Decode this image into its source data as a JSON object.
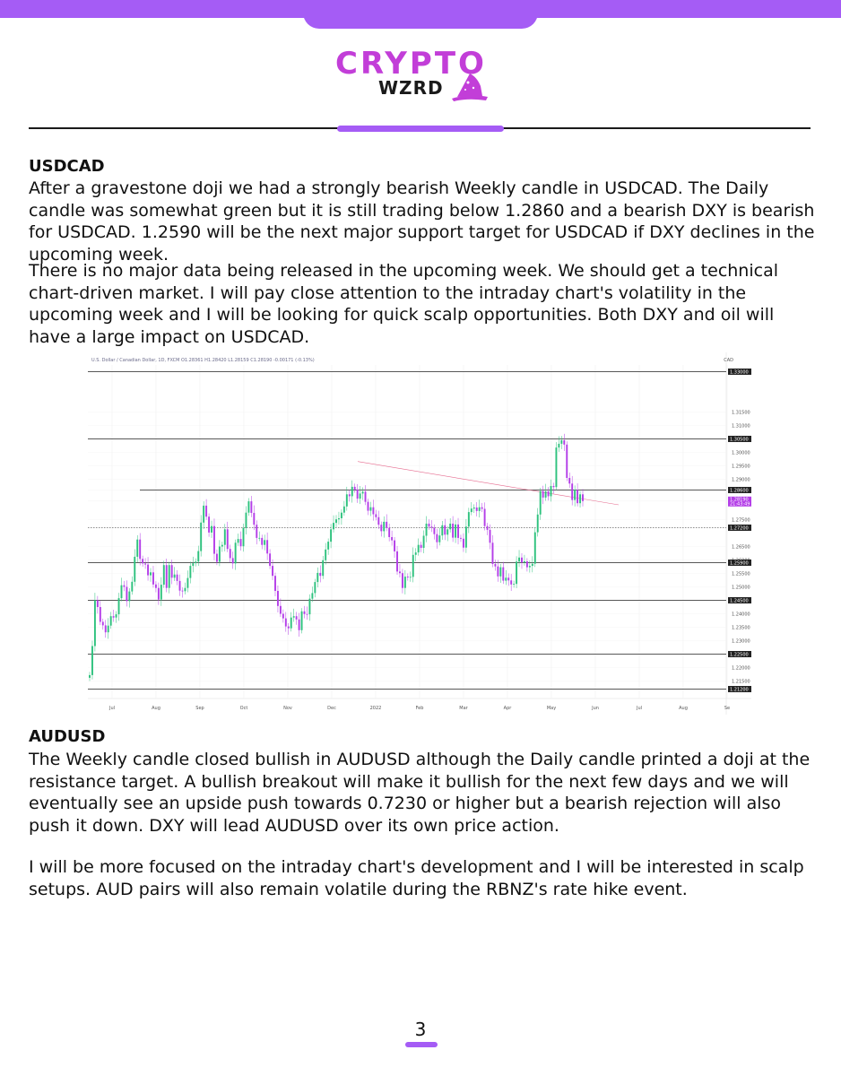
{
  "brand": {
    "name": "CRYPTO",
    "sub": "WZRD"
  },
  "sections": [
    {
      "title": "USDCAD",
      "paragraphs": [
        "After a gravestone doji we had a strongly bearish Weekly candle in USDCAD. The Daily candle was somewhat green but it is still trading below 1.2860 and a bearish DXY is bearish for USDCAD. 1.2590 will be the next major support target for USDCAD if DXY declines in the upcoming week.",
        "There is no major data being released in the upcoming week. We should get a technical chart-driven market. I will pay close attention to the intraday chart's volatility in the upcoming week and I will be looking for quick scalp opportunities. Both DXY and oil will have a large impact on USDCAD."
      ]
    },
    {
      "title": "AUDUSD",
      "paragraphs": [
        "The Weekly candle closed bullish in AUDUSD although the Daily candle printed a doji at the resistance target. A bullish breakout will make it bullish for the next few days and we will eventually see an upside push towards 0.7230 or higher but a bearish rejection will also push it down. DXY will lead AUDUSD over its own price action.",
        "I will be more focused on the intraday chart's development and I will be interested in scalp setups. AUD pairs will also remain volatile during the RBNZ's rate hike event."
      ]
    }
  ],
  "chart": {
    "header": "U.S. Dollar / Canadian Dollar, 1D, FXCM  O1.28361  H1.28420  L1.28159  C1.28190  -0.00171 (-0.13%)",
    "currency": "CAD",
    "price_badge": "1.28190",
    "price_badge_time": "21:43:49"
  },
  "chart_data": {
    "type": "candlestick",
    "title": "U.S. Dollar / Canadian Dollar, 1D, FXCM",
    "ylim": [
      1.2085,
      1.3325
    ],
    "y_ticks": [
      "1.33000",
      "1.31500",
      "1.31000",
      "1.30500",
      "1.30000",
      "1.29500",
      "1.29000",
      "1.28600",
      "1.28190",
      "1.27500",
      "1.27200",
      "1.26500",
      "1.26000",
      "1.25900",
      "1.25500",
      "1.25000",
      "1.24500",
      "1.24000",
      "1.23500",
      "1.23000",
      "1.22500",
      "1.22000",
      "1.21500",
      "1.21200"
    ],
    "x_ticks": [
      "Jul",
      "Aug",
      "Sep",
      "Oct",
      "Nov",
      "Dec",
      "2022",
      "Feb",
      "Mar",
      "Apr",
      "May",
      "Jun",
      "Jul",
      "Aug",
      "Se"
    ],
    "levels": [
      {
        "label": "1.33000",
        "value": 1.33,
        "style": "solid"
      },
      {
        "label": "1.30500",
        "value": 1.305,
        "style": "solid"
      },
      {
        "label": "1.28600",
        "value": 1.286,
        "style": "solid"
      },
      {
        "label": "1.27200",
        "value": 1.272,
        "style": "dotted"
      },
      {
        "label": "1.25900",
        "value": 1.259,
        "style": "solid"
      },
      {
        "label": "1.24500",
        "value": 1.245,
        "style": "solid"
      },
      {
        "label": "1.22500",
        "value": 1.225,
        "style": "solid"
      },
      {
        "label": "1.21200",
        "value": 1.212,
        "style": "solid"
      }
    ],
    "trendline": [
      1.2966,
      1.2805
    ],
    "current_price": 1.2819,
    "colors": {
      "up": "#2ec27e",
      "down": "#b43ee8",
      "trendline": "#e66b8f",
      "level": "#222222"
    },
    "series": [
      {
        "name": "USDCAD",
        "close": [
          1.2172,
          1.228,
          1.245,
          1.2425,
          1.237,
          1.2357,
          1.2331,
          1.2356,
          1.2391,
          1.2386,
          1.2398,
          1.2458,
          1.2506,
          1.25,
          1.2447,
          1.2483,
          1.2519,
          1.2612,
          1.2676,
          1.2604,
          1.2587,
          1.2583,
          1.2543,
          1.2554,
          1.2509,
          1.2496,
          1.2453,
          1.2508,
          1.2581,
          1.2496,
          1.2581,
          1.2534,
          1.2546,
          1.2522,
          1.2486,
          1.2484,
          1.2496,
          1.2533,
          1.2578,
          1.2588,
          1.2594,
          1.2633,
          1.2739,
          1.2802,
          1.2761,
          1.2702,
          1.2726,
          1.2623,
          1.2593,
          1.265,
          1.2656,
          1.2714,
          1.2641,
          1.2607,
          1.2587,
          1.2664,
          1.2678,
          1.2651,
          1.2719,
          1.2776,
          1.2818,
          1.2775,
          1.2731,
          1.2682,
          1.2682,
          1.2656,
          1.2674,
          1.2624,
          1.2578,
          1.2541,
          1.2485,
          1.2429,
          1.24,
          1.2383,
          1.2353,
          1.2346,
          1.2386,
          1.2391,
          1.2379,
          1.2339,
          1.2409,
          1.2399,
          1.2398,
          1.2456,
          1.2477,
          1.2518,
          1.2552,
          1.2541,
          1.2599,
          1.2639,
          1.2668,
          1.2714,
          1.2738,
          1.2751,
          1.2755,
          1.2776,
          1.2799,
          1.2844,
          1.2837,
          1.2872,
          1.2862,
          1.2828,
          1.2847,
          1.2854,
          1.2816,
          1.2783,
          1.2796,
          1.277,
          1.2759,
          1.2731,
          1.2707,
          1.2742,
          1.2719,
          1.2685,
          1.2673,
          1.2632,
          1.2557,
          1.2551,
          1.2496,
          1.2538,
          1.2535,
          1.2537,
          1.2619,
          1.2628,
          1.2656,
          1.2645,
          1.269,
          1.2735,
          1.2724,
          1.272,
          1.2696,
          1.2666,
          1.2691,
          1.2729,
          1.2694,
          1.2714,
          1.2735,
          1.2683,
          1.2732,
          1.2682,
          1.2679,
          1.2646,
          1.2724,
          1.2778,
          1.2791,
          1.2795,
          1.2782,
          1.2796,
          1.279,
          1.2726,
          1.2712,
          1.2664,
          1.2585,
          1.2576,
          1.2539,
          1.2573,
          1.2523,
          1.2534,
          1.2524,
          1.2509,
          1.2511,
          1.2594,
          1.2609,
          1.2591,
          1.2595,
          1.2573,
          1.2578,
          1.2586,
          1.2703,
          1.2769,
          1.2856,
          1.2832,
          1.2855,
          1.2837,
          1.2875,
          1.2871,
          1.3018,
          1.3032,
          1.3045,
          1.3029,
          1.2905,
          1.2884,
          1.2823,
          1.2861,
          1.2811,
          1.2844,
          1.2819
        ]
      }
    ]
  }
}
